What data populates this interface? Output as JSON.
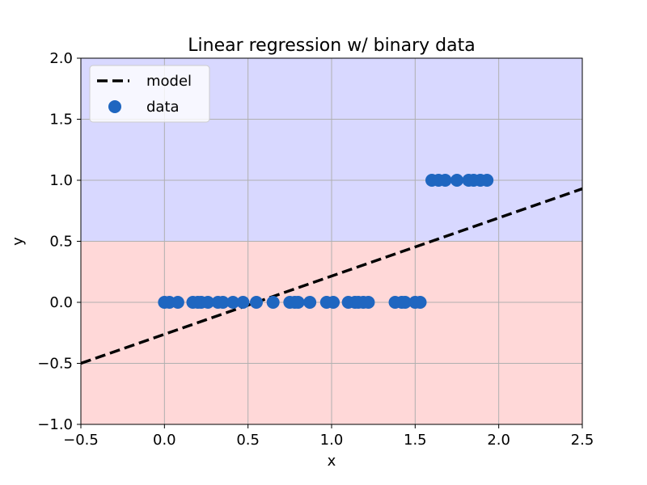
{
  "chart_data": {
    "type": "scatter",
    "title": "Linear regression w/ binary data",
    "xlabel": "x",
    "ylabel": "y",
    "xlim": [
      -0.5,
      2.5
    ],
    "ylim": [
      -1.0,
      2.0
    ],
    "xticks": [
      "−0.5",
      "0.0",
      "0.5",
      "1.0",
      "1.5",
      "2.0",
      "2.5"
    ],
    "xtick_values": [
      -0.5,
      0.0,
      0.5,
      1.0,
      1.5,
      2.0,
      2.5
    ],
    "yticks": [
      "2.0",
      "1.5",
      "1.0",
      "0.5",
      "0.0",
      "−0.5",
      "−1.0"
    ],
    "ytick_values": [
      2.0,
      1.5,
      1.0,
      0.5,
      0.0,
      -0.5,
      -1.0
    ],
    "grid": true,
    "legend_placement": "top-left",
    "decision_threshold": 0.5,
    "regions": {
      "upper_color": "#d8d8ff",
      "lower_color": "#ffd8d8"
    },
    "series": [
      {
        "name": "model",
        "kind": "line",
        "style": "dashed",
        "color": "#000000",
        "x": [
          -0.5,
          2.5
        ],
        "y": [
          -0.5,
          0.93
        ]
      },
      {
        "name": "data",
        "kind": "scatter",
        "color": "#1f66c0",
        "x": [
          0.0,
          0.03,
          0.08,
          0.17,
          0.2,
          0.22,
          0.26,
          0.32,
          0.35,
          0.41,
          0.47,
          0.55,
          0.65,
          0.75,
          0.78,
          0.8,
          0.87,
          0.97,
          1.01,
          1.1,
          1.14,
          1.16,
          1.19,
          1.22,
          1.38,
          1.42,
          1.44,
          1.5,
          1.53,
          1.6,
          1.64,
          1.68,
          1.75,
          1.82,
          1.85,
          1.89,
          1.93
        ],
        "y": [
          0,
          0,
          0,
          0,
          0,
          0,
          0,
          0,
          0,
          0,
          0,
          0,
          0,
          0,
          0,
          0,
          0,
          0,
          0,
          0,
          0,
          0,
          0,
          0,
          0,
          0,
          0,
          0,
          0,
          1,
          1,
          1,
          1,
          1,
          1,
          1,
          1
        ]
      }
    ]
  }
}
